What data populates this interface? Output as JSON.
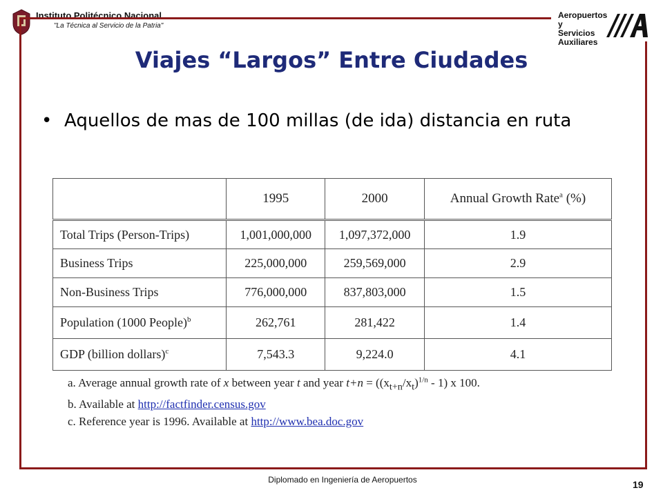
{
  "header": {
    "institution": "Instituto Politécnico Nacional",
    "slogan": "\"La Técnica al Servicio de la Patria\"",
    "partner": [
      "Aeropuertos y",
      "Servicios",
      "Auxiliares"
    ]
  },
  "slide": {
    "title": "Viajes “Largos” Entre Ciudades",
    "bullet": "Aquellos de mas de 100 millas (de ida) distancia en ruta"
  },
  "table": {
    "headers": [
      "",
      "1995",
      "2000",
      "Annual Growth Rate"
    ],
    "growth_header_sup": "a",
    "growth_header_unit": " (%)",
    "rows": [
      {
        "label": "Total Trips (Person-Trips)",
        "sup": "",
        "y1995": "1,001,000,000",
        "y2000": "1,097,372,000",
        "growth": "1.9"
      },
      {
        "label": "Business Trips",
        "sup": "",
        "y1995": "225,000,000",
        "y2000": "259,569,000",
        "growth": "2.9"
      },
      {
        "label": "Non-Business Trips",
        "sup": "",
        "y1995": "776,000,000",
        "y2000": "837,803,000",
        "growth": "1.5"
      },
      {
        "label": "Population (1000 People)",
        "sup": "b",
        "y1995": "262,761",
        "y2000": "281,422",
        "growth": "1.4"
      },
      {
        "label": "GDP (billion dollars)",
        "sup": "c",
        "y1995": "7,543.3",
        "y2000": "9,224.0",
        "growth": "4.1"
      }
    ]
  },
  "notes": {
    "a_prefix": "a. Average annual growth rate of ",
    "a_x": "x",
    "a_mid": " between year ",
    "a_t": "t",
    "a_and": " and year ",
    "a_tn": "t+n",
    "a_eq": " = ((x",
    "a_sub1": "t+n",
    "a_div": "/x",
    "a_sub2": "t",
    "a_exp": "1/n",
    "a_end": " - 1) x 100.",
    "b_text": "b. Available at ",
    "b_link": "http://factfinder.census.gov",
    "c_text": "c. Reference year is 1996. Available at ",
    "c_link": "http://www.bea.doc.gov"
  },
  "footer": {
    "text": "Diplomado en Ingeniería de Aeropuertos",
    "page": "19"
  },
  "colors": {
    "frame": "#8b1a1a",
    "title": "#1e2a78",
    "link": "#1f2fb0"
  }
}
